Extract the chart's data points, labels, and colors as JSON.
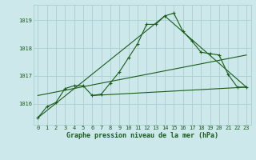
{
  "title": "Graphe pression niveau de la mer (hPa)",
  "background_color": "#cce8ea",
  "grid_color": "#aacfd2",
  "line_color": "#1a5c1a",
  "xlim": [
    -0.5,
    23.5
  ],
  "ylim": [
    1015.25,
    1019.55
  ],
  "yticks": [
    1016,
    1017,
    1018,
    1019
  ],
  "xticks": [
    0,
    1,
    2,
    3,
    4,
    5,
    6,
    7,
    8,
    9,
    10,
    11,
    12,
    13,
    14,
    15,
    16,
    17,
    18,
    19,
    20,
    21,
    22,
    23
  ],
  "series_main": {
    "x": [
      0,
      1,
      2,
      3,
      4,
      5,
      6,
      7,
      8,
      9,
      10,
      11,
      12,
      13,
      14,
      15,
      16,
      17,
      18,
      19,
      20,
      21,
      22,
      23
    ],
    "y": [
      1015.5,
      1015.9,
      1016.05,
      1016.55,
      1016.65,
      1016.65,
      1016.3,
      1016.35,
      1016.75,
      1017.15,
      1017.65,
      1018.15,
      1018.85,
      1018.85,
      1019.15,
      1019.25,
      1018.6,
      1018.25,
      1017.85,
      1017.8,
      1017.75,
      1017.05,
      1016.6,
      1016.6
    ]
  },
  "line1": {
    "x": [
      0,
      14,
      23
    ],
    "y": [
      1015.5,
      1019.15,
      1016.6
    ]
  },
  "line2": {
    "x": [
      0,
      23
    ],
    "y": [
      1016.3,
      1017.75
    ]
  },
  "line3": {
    "x": [
      6,
      23
    ],
    "y": [
      1016.3,
      1016.6
    ]
  }
}
